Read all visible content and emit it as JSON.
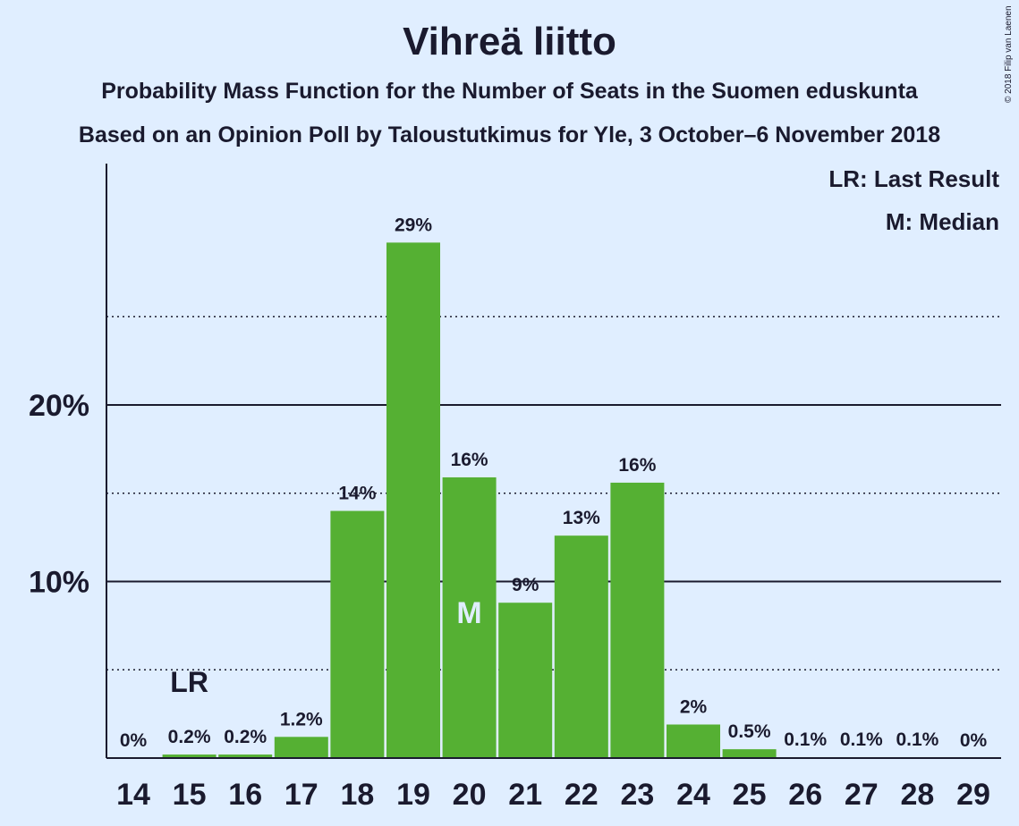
{
  "chart_data": {
    "type": "bar",
    "title": "Vihreä liitto",
    "subtitle": "Probability Mass Function for the Number of Seats in the Suomen eduskunta",
    "subtitle2": "Based on an Opinion Poll by Taloustutkimus for Yle, 3 October–6 November 2018",
    "copyright": "© 2018 Filip van Laenen",
    "categories": [
      "14",
      "15",
      "16",
      "17",
      "18",
      "19",
      "20",
      "21",
      "22",
      "23",
      "24",
      "25",
      "26",
      "27",
      "28",
      "29"
    ],
    "values": [
      0,
      0.2,
      0.2,
      1.2,
      14,
      29.2,
      15.9,
      8.8,
      12.6,
      15.6,
      1.9,
      0.5,
      0.05,
      0.05,
      0.05,
      0
    ],
    "data_labels": [
      "0%",
      "0.2%",
      "0.2%",
      "1.2%",
      "14%",
      "29%",
      "16%",
      "9%",
      "13%",
      "16%",
      "2%",
      "0.5%",
      "0.1%",
      "0.1%",
      "0.1%",
      "0%"
    ],
    "ylim": [
      0,
      31.7
    ],
    "y_major_ticks": [
      10,
      20
    ],
    "y_tick_labels": [
      "10%",
      "20%"
    ],
    "y_minor_gridlines": [
      5,
      15,
      25
    ],
    "grid": true,
    "last_result": {
      "category": "15",
      "label": "LR"
    },
    "median": {
      "category": "20",
      "label": "M"
    },
    "legend": {
      "placement": "top-right",
      "entries": [
        "LR: Last Result",
        "M: Median"
      ]
    },
    "colors": {
      "bar": "#55b033",
      "background": "#e0eeff",
      "text": "#1a1a2e"
    }
  }
}
